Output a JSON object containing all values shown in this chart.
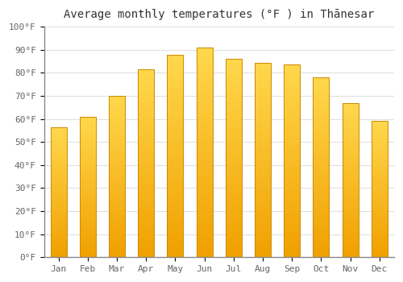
{
  "title": "Average monthly temperatures (°F ) in Thānesar",
  "months": [
    "Jan",
    "Feb",
    "Mar",
    "Apr",
    "May",
    "Jun",
    "Jul",
    "Aug",
    "Sep",
    "Oct",
    "Nov",
    "Dec"
  ],
  "values": [
    56.5,
    61.0,
    70.0,
    81.5,
    88.0,
    91.0,
    86.0,
    84.5,
    83.5,
    78.0,
    67.0,
    59.0
  ],
  "bar_color_bottom": "#F0A000",
  "bar_color_top": "#FFD84D",
  "bar_edge_color": "#CC8800",
  "ylim": [
    0,
    100
  ],
  "yticks": [
    0,
    10,
    20,
    30,
    40,
    50,
    60,
    70,
    80,
    90,
    100
  ],
  "ytick_labels": [
    "0°F",
    "10°F",
    "20°F",
    "30°F",
    "40°F",
    "50°F",
    "60°F",
    "70°F",
    "80°F",
    "90°F",
    "100°F"
  ],
  "background_color": "#FFFFFF",
  "grid_color": "#E0E0E0",
  "title_fontsize": 10,
  "tick_fontsize": 8,
  "bar_width": 0.55,
  "figsize": [
    5.0,
    3.5
  ],
  "dpi": 100
}
